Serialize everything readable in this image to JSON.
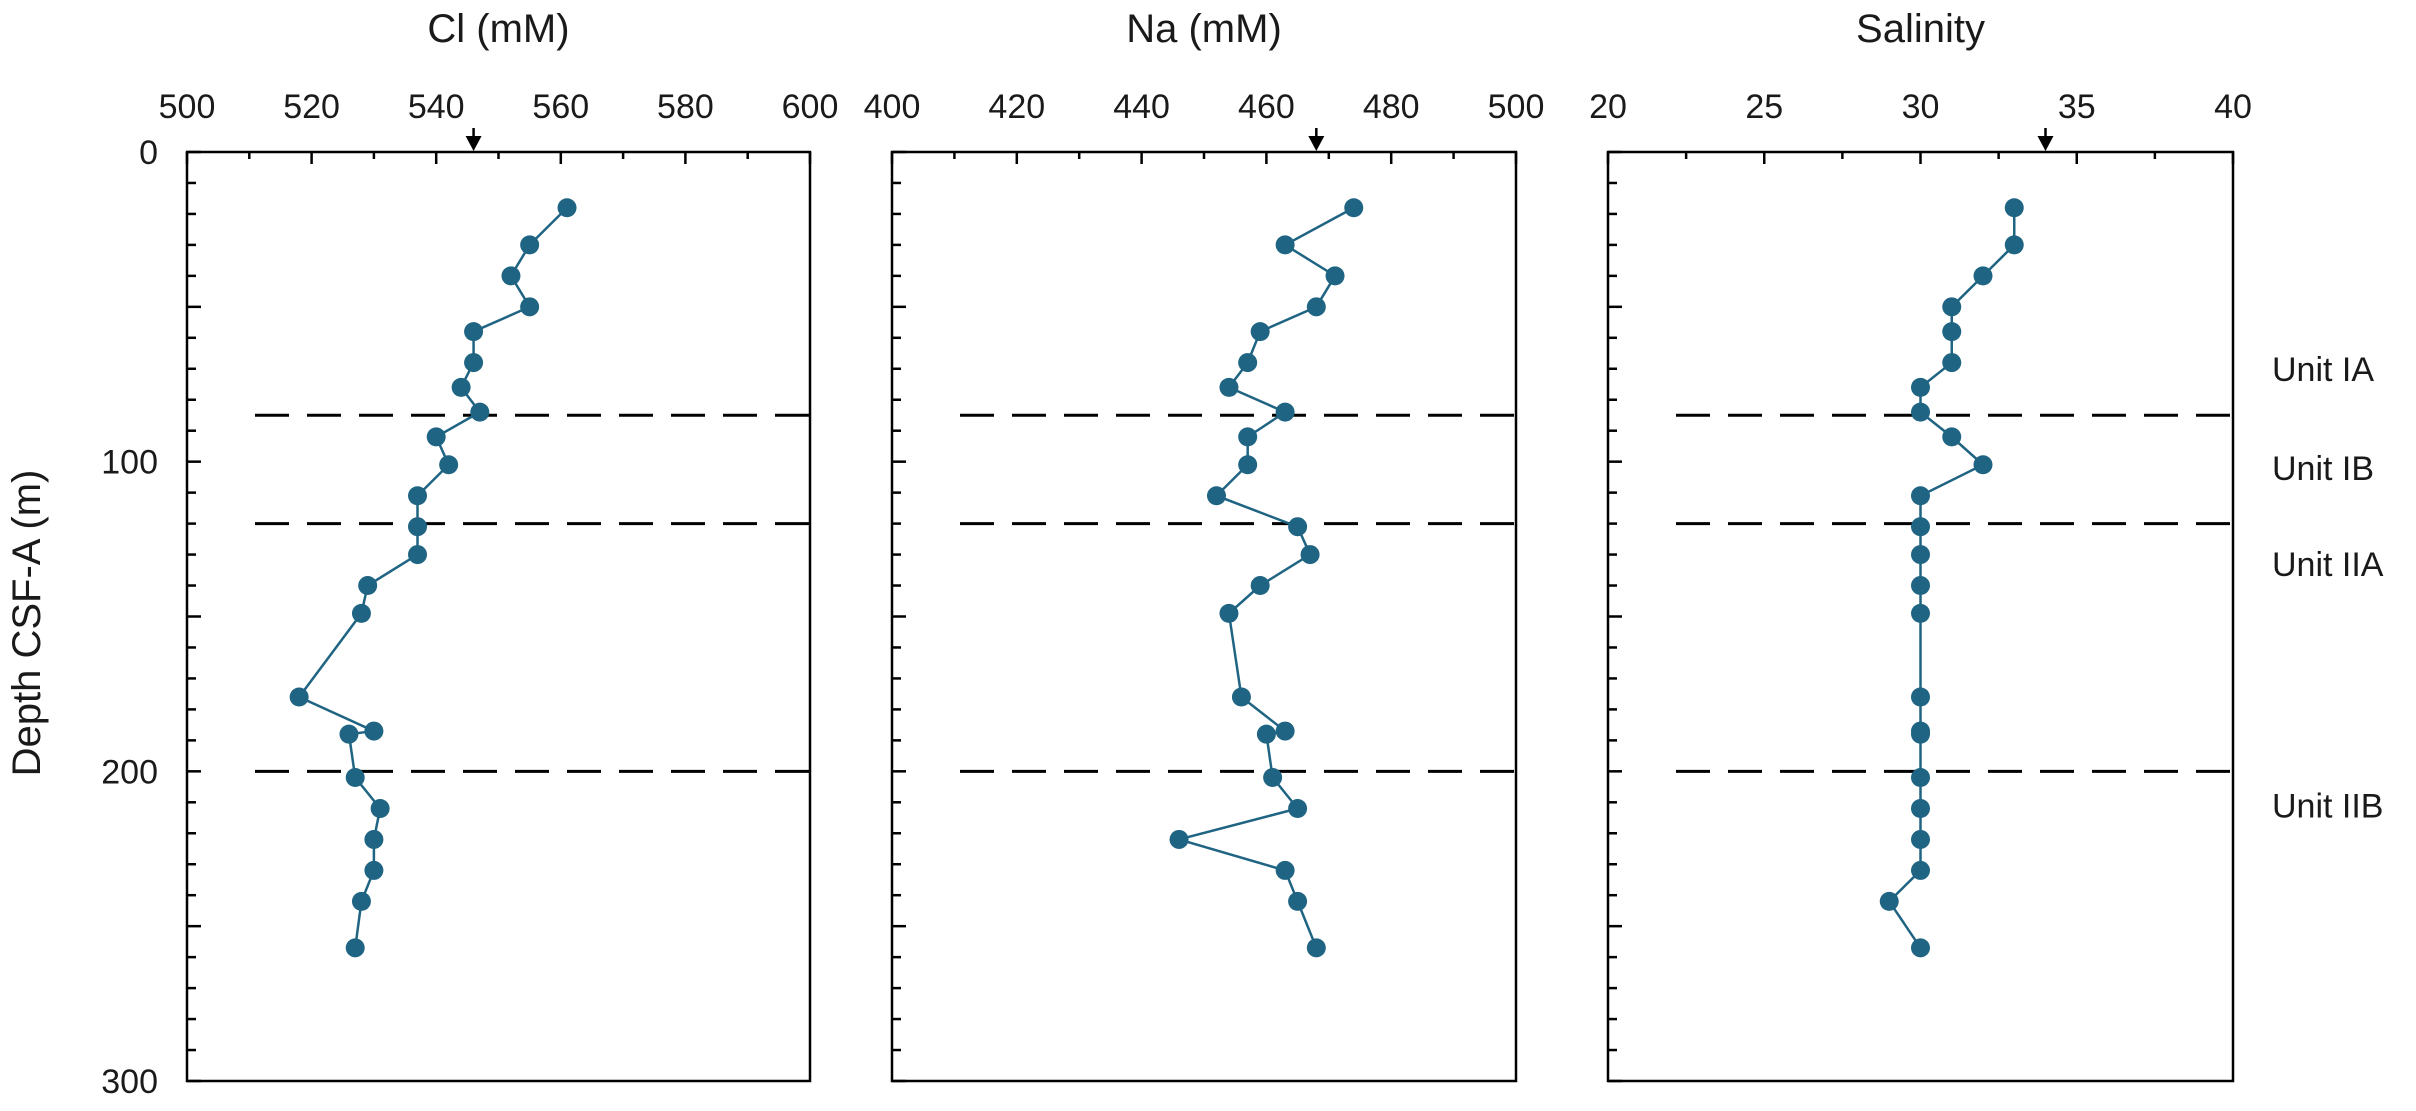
{
  "chart_data": {
    "type": "scatter",
    "ylabel": "Depth CSF-A (m)",
    "ylim": [
      300,
      0
    ],
    "y_ticks": [
      0,
      100,
      200,
      300
    ],
    "unit_boundaries": [
      85,
      120,
      200
    ],
    "units": [
      {
        "label": "Unit IA",
        "depth": 70
      },
      {
        "label": "Unit IB",
        "depth": 102
      },
      {
        "label": "Unit IIA",
        "depth": 133
      },
      {
        "label": "Unit IIB",
        "depth": 211
      }
    ],
    "panels": [
      {
        "title": "Cl (mM)",
        "xlim": [
          500,
          600
        ],
        "x_ticks": [
          500,
          520,
          540,
          560,
          580,
          600
        ],
        "reference_marker": 546,
        "series": [
          {
            "depth": [
              18,
              30,
              40,
              50,
              58,
              68,
              76,
              84,
              92,
              101,
              111,
              121,
              130,
              140,
              149,
              176,
              187,
              188,
              202,
              212,
              222,
              232,
              242,
              257
            ],
            "values": [
              561,
              555,
              552,
              555,
              546,
              546,
              544,
              547,
              540,
              542,
              537,
              537,
              537,
              529,
              528,
              518,
              530,
              526,
              527,
              531,
              530,
              530,
              528,
              527
            ]
          }
        ]
      },
      {
        "title": "Na (mM)",
        "xlim": [
          400,
          500
        ],
        "x_ticks": [
          400,
          420,
          440,
          460,
          480,
          500
        ],
        "reference_marker": 468,
        "series": [
          {
            "depth": [
              18,
              30,
              40,
              50,
              58,
              68,
              76,
              84,
              92,
              101,
              111,
              121,
              130,
              140,
              149,
              176,
              187,
              188,
              202,
              212,
              222,
              232,
              242,
              257
            ],
            "values": [
              474,
              463,
              471,
              468,
              459,
              457,
              454,
              463,
              457,
              457,
              452,
              465,
              467,
              459,
              454,
              456,
              463,
              460,
              461,
              465,
              446,
              463,
              465,
              468
            ]
          }
        ]
      },
      {
        "title": "Salinity",
        "xlim": [
          20,
          40
        ],
        "x_ticks": [
          20,
          25,
          30,
          35,
          40
        ],
        "reference_marker": 34,
        "series": [
          {
            "depth": [
              18,
              30,
              40,
              50,
              58,
              68,
              76,
              84,
              92,
              101,
              111,
              121,
              130,
              140,
              149,
              176,
              187,
              188,
              202,
              212,
              222,
              232,
              242,
              257
            ],
            "values": [
              33,
              33,
              32,
              31,
              31,
              31,
              30,
              30,
              31,
              32,
              30,
              30,
              30,
              30,
              30,
              30,
              30,
              30,
              30,
              30,
              30,
              30,
              29,
              30
            ]
          }
        ]
      }
    ]
  }
}
